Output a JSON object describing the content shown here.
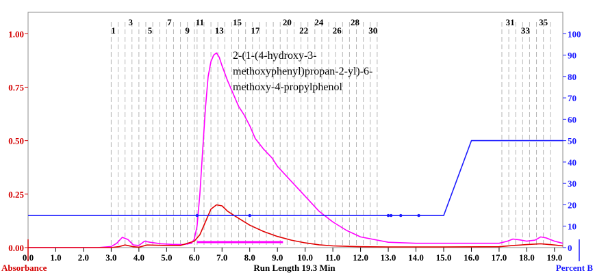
{
  "chart_data": {
    "type": "line",
    "xlabel": "Run Length 19.3 Min",
    "ylabel_left": "Absorbance",
    "ylabel_right": "Percent B",
    "xlim": [
      0,
      19.3
    ],
    "ylim_left": [
      0,
      1.1
    ],
    "ylim_right": [
      0,
      110
    ],
    "x_ticks": [
      "0.0",
      "1.0",
      "2.0",
      "3.0",
      "4.0",
      "5.0",
      "6.0",
      "7.0",
      "8.0",
      "9.0",
      "10.0",
      "11.0",
      "12.0",
      "13.0",
      "14.0",
      "15.0",
      "16.0",
      "17.0",
      "18.0",
      "19.0"
    ],
    "y_left_ticks": [
      "0.00",
      "0.25",
      "0.50",
      "0.75",
      "1.00"
    ],
    "y_right_ticks": [
      "0",
      "10",
      "20",
      "30",
      "40",
      "50",
      "60",
      "70",
      "80",
      "90",
      "100"
    ],
    "colors": {
      "magenta": "#ff00ff",
      "red": "#e00000",
      "blue": "#1a1aff",
      "left_axis": "#d40000",
      "right_axis": "#1a1aff"
    },
    "annotation": [
      "2-(1-(4-hydroxy-3-",
      "methoxyphenyl)propan-2-yl)-6-",
      "methoxy-4-propylphenol"
    ],
    "collected_range": [
      6.1,
      9.2
    ],
    "fractions": [
      {
        "label": "1",
        "x": 3.08,
        "row": 1
      },
      {
        "label": "3",
        "x": 3.7,
        "row": 0
      },
      {
        "label": "5",
        "x": 4.4,
        "row": 1
      },
      {
        "label": "7",
        "x": 5.1,
        "row": 0
      },
      {
        "label": "9",
        "x": 5.75,
        "row": 1
      },
      {
        "label": "11",
        "x": 6.2,
        "row": 0
      },
      {
        "label": "13",
        "x": 6.9,
        "row": 1
      },
      {
        "label": "15",
        "x": 7.55,
        "row": 0
      },
      {
        "label": "17",
        "x": 8.2,
        "row": 1
      },
      {
        "label": "20",
        "x": 9.35,
        "row": 0
      },
      {
        "label": "22",
        "x": 9.95,
        "row": 1
      },
      {
        "label": "24",
        "x": 10.5,
        "row": 0
      },
      {
        "label": "26",
        "x": 11.15,
        "row": 1
      },
      {
        "label": "28",
        "x": 11.8,
        "row": 0
      },
      {
        "label": "30",
        "x": 12.45,
        "row": 1
      },
      {
        "label": "31",
        "x": 17.4,
        "row": 0
      },
      {
        "label": "33",
        "x": 17.95,
        "row": 1
      },
      {
        "label": "35",
        "x": 18.6,
        "row": 0
      }
    ],
    "fraction_lines": [
      3.0,
      3.25,
      3.5,
      3.75,
      4.0,
      4.25,
      4.5,
      4.75,
      5.0,
      5.25,
      5.5,
      5.75,
      6.0,
      6.1,
      6.35,
      6.6,
      6.85,
      7.1,
      7.35,
      7.6,
      7.85,
      8.1,
      8.35,
      8.6,
      8.85,
      9.1,
      9.35,
      9.6,
      9.85,
      10.1,
      10.35,
      10.6,
      10.85,
      11.1,
      11.35,
      11.6,
      11.85,
      12.1,
      12.35,
      12.6,
      17.1,
      17.35,
      17.6,
      17.85,
      18.1,
      18.35,
      18.6,
      18.85
    ],
    "series": [
      {
        "axis": "left",
        "x": [
          0,
          2.5,
          3.0,
          3.2,
          3.4,
          3.6,
          3.8,
          4.0,
          4.2,
          4.4,
          4.8,
          5.2,
          5.6,
          5.9,
          6.0,
          6.1,
          6.2,
          6.3,
          6.4,
          6.5,
          6.6,
          6.7,
          6.8,
          6.9,
          7.0,
          7.2,
          7.4,
          7.6,
          7.8,
          8.0,
          8.2,
          8.5,
          8.8,
          9.0,
          9.5,
          10.0,
          10.5,
          11.0,
          11.5,
          12.0,
          13.0,
          14.0,
          15.0,
          16.0,
          17.0,
          17.3,
          17.5,
          17.8,
          18.0,
          18.3,
          18.5,
          18.7,
          19.0,
          19.3
        ],
        "y": [
          0,
          0,
          0.005,
          0.02,
          0.048,
          0.038,
          0.012,
          0.01,
          0.03,
          0.025,
          0.018,
          0.015,
          0.014,
          0.02,
          0.04,
          0.1,
          0.25,
          0.45,
          0.65,
          0.8,
          0.87,
          0.9,
          0.91,
          0.89,
          0.85,
          0.78,
          0.72,
          0.66,
          0.62,
          0.57,
          0.51,
          0.46,
          0.42,
          0.38,
          0.31,
          0.24,
          0.17,
          0.12,
          0.08,
          0.05,
          0.025,
          0.02,
          0.02,
          0.02,
          0.02,
          0.03,
          0.04,
          0.035,
          0.03,
          0.035,
          0.05,
          0.045,
          0.03,
          0.02
        ]
      },
      {
        "axis": "left",
        "x": [
          0,
          3.0,
          3.3,
          3.5,
          3.8,
          4.0,
          4.3,
          5.0,
          5.5,
          6.0,
          6.2,
          6.4,
          6.6,
          6.8,
          7.0,
          7.2,
          7.5,
          8.0,
          8.5,
          9.0,
          9.5,
          10.0,
          10.5,
          11.0,
          12.0,
          13.0,
          15.0,
          17.0,
          17.5,
          18.0,
          18.5,
          19.0,
          19.3
        ],
        "y": [
          0,
          0,
          0.005,
          0.012,
          0.004,
          0.002,
          0.012,
          0.01,
          0.01,
          0.03,
          0.06,
          0.12,
          0.18,
          0.2,
          0.195,
          0.17,
          0.145,
          0.105,
          0.075,
          0.052,
          0.035,
          0.022,
          0.013,
          0.008,
          0.004,
          0.003,
          0.003,
          0.004,
          0.01,
          0.014,
          0.018,
          0.012,
          0.008
        ]
      },
      {
        "axis": "right",
        "x": [
          0,
          15.0,
          16.0,
          19.3
        ],
        "y": [
          15,
          15,
          50,
          50
        ],
        "markers": [
          6.1,
          8.0,
          13.0,
          13.1,
          13.45,
          14.1
        ]
      }
    ]
  }
}
